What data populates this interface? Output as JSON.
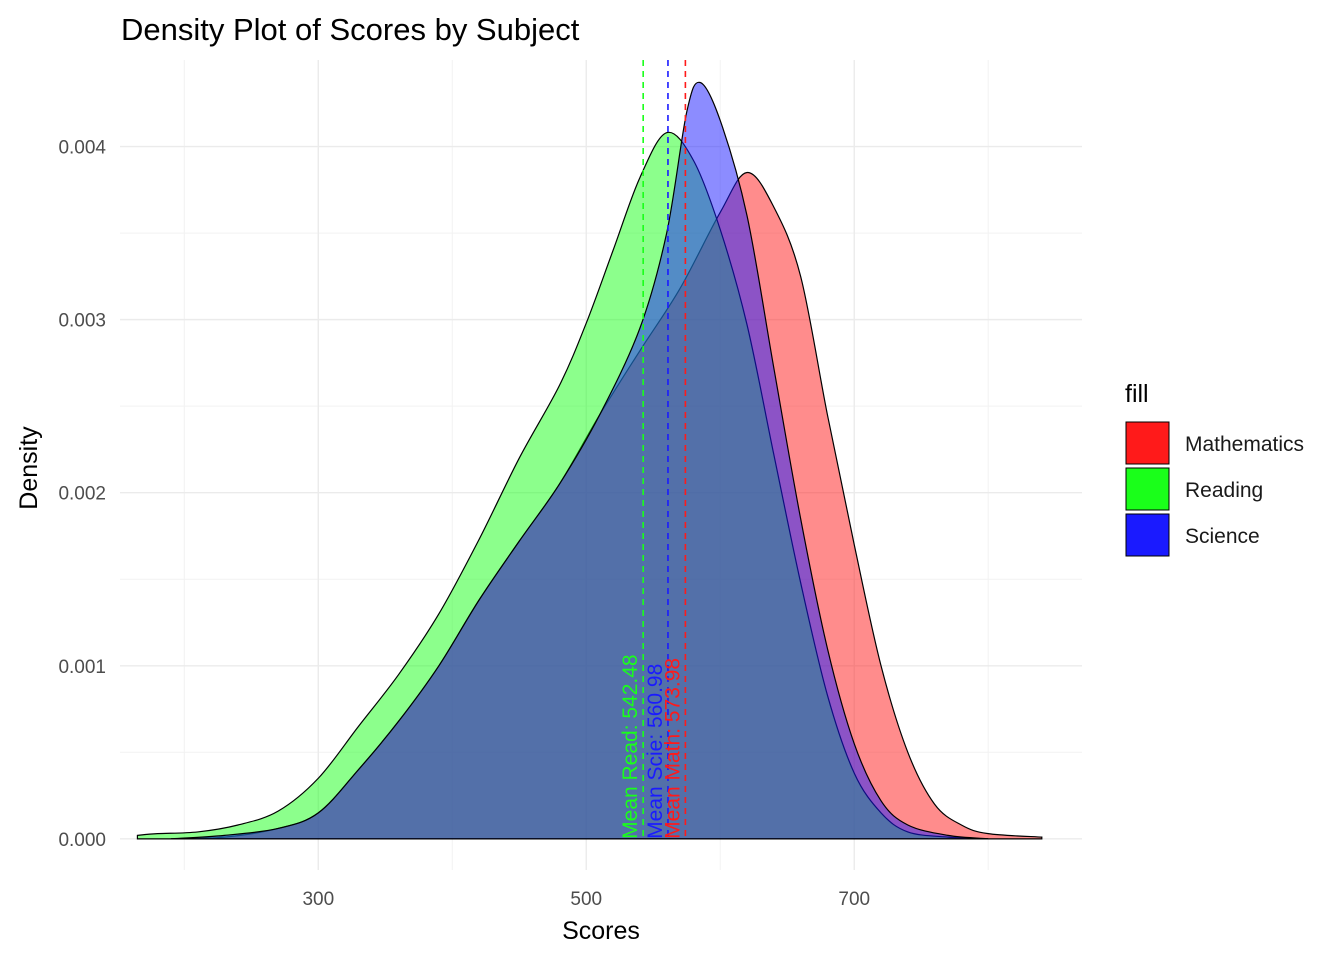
{
  "chart_data": {
    "type": "area",
    "title": "Density Plot of Scores by Subject",
    "xlabel": "Scores",
    "ylabel": "Density",
    "xlim": [
      152,
      870
    ],
    "ylim": [
      -0.00018,
      0.0045
    ],
    "x_ticks": [
      300,
      500,
      700
    ],
    "y_ticks": [
      0.0,
      0.001,
      0.002,
      0.003,
      0.004
    ],
    "y_tick_labels": [
      "0.000",
      "0.001",
      "0.002",
      "0.003",
      "0.004"
    ],
    "grid": true,
    "legend": {
      "title": "fill",
      "position": "right"
    },
    "series": [
      {
        "name": "Mathematics",
        "color": "#FF1A1A",
        "mean": 573.98,
        "mean_label": "Mean Math: 573.98",
        "points": [
          [
            190,
            0
          ],
          [
            230,
            1e-05
          ],
          [
            270,
            6e-05
          ],
          [
            300,
            0.00015
          ],
          [
            330,
            0.0004
          ],
          [
            360,
            0.00068
          ],
          [
            390,
            0.001
          ],
          [
            420,
            0.00138
          ],
          [
            450,
            0.00172
          ],
          [
            480,
            0.00205
          ],
          [
            510,
            0.00245
          ],
          [
            540,
            0.00282
          ],
          [
            570,
            0.00318
          ],
          [
            600,
            0.00362
          ],
          [
            620,
            0.00385
          ],
          [
            640,
            0.00365
          ],
          [
            660,
            0.00325
          ],
          [
            680,
            0.00245
          ],
          [
            700,
            0.0017
          ],
          [
            720,
            0.001
          ],
          [
            740,
            0.0005
          ],
          [
            760,
            0.0002
          ],
          [
            780,
            8e-05
          ],
          [
            800,
            3e-05
          ],
          [
            840,
            1e-05
          ]
        ]
      },
      {
        "name": "Reading",
        "color": "#1AFF1A",
        "mean": 542.48,
        "mean_label": "Mean Read: 542.48",
        "points": [
          [
            165,
            2e-05
          ],
          [
            180,
            3e-05
          ],
          [
            210,
            4e-05
          ],
          [
            240,
            8e-05
          ],
          [
            270,
            0.00016
          ],
          [
            300,
            0.00035
          ],
          [
            330,
            0.00065
          ],
          [
            360,
            0.00095
          ],
          [
            390,
            0.0013
          ],
          [
            420,
            0.00173
          ],
          [
            450,
            0.0022
          ],
          [
            480,
            0.00262
          ],
          [
            500,
            0.00298
          ],
          [
            520,
            0.0034
          ],
          [
            540,
            0.00382
          ],
          [
            560,
            0.00408
          ],
          [
            580,
            0.00392
          ],
          [
            600,
            0.00352
          ],
          [
            620,
            0.00297
          ],
          [
            640,
            0.00222
          ],
          [
            660,
            0.00148
          ],
          [
            680,
            0.00083
          ],
          [
            700,
            0.00038
          ],
          [
            720,
            0.00015
          ],
          [
            740,
            4e-05
          ],
          [
            770,
            1e-05
          ],
          [
            800,
            0
          ]
        ]
      },
      {
        "name": "Science",
        "color": "#1A1AFF",
        "mean": 560.98,
        "mean_label": "Mean Scie: 560.98",
        "points": [
          [
            190,
            0
          ],
          [
            230,
            2e-05
          ],
          [
            270,
            6e-05
          ],
          [
            300,
            0.00015
          ],
          [
            330,
            0.0004
          ],
          [
            360,
            0.00068
          ],
          [
            390,
            0.001
          ],
          [
            420,
            0.00138
          ],
          [
            450,
            0.00172
          ],
          [
            480,
            0.00205
          ],
          [
            510,
            0.00245
          ],
          [
            540,
            0.00295
          ],
          [
            560,
            0.0035
          ],
          [
            575,
            0.0042
          ],
          [
            585,
            0.00437
          ],
          [
            600,
            0.00415
          ],
          [
            620,
            0.0036
          ],
          [
            640,
            0.00272
          ],
          [
            660,
            0.00185
          ],
          [
            680,
            0.0011
          ],
          [
            700,
            0.00055
          ],
          [
            720,
            0.00022
          ],
          [
            740,
            8e-05
          ],
          [
            770,
            2e-05
          ],
          [
            800,
            0
          ]
        ]
      }
    ]
  }
}
